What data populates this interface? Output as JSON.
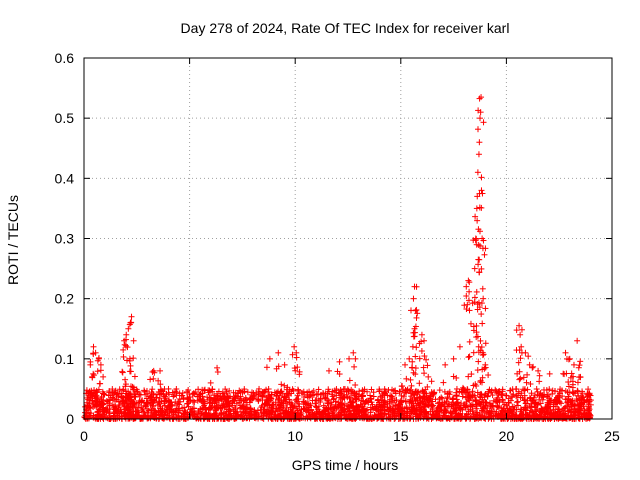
{
  "chart_data": {
    "type": "scatter",
    "title": "Day 278 of 2024, Rate Of TEC Index for receiver karl",
    "xlabel": "GPS time / hours",
    "ylabel": "ROTI / TECUs",
    "xlim": [
      0,
      25
    ],
    "ylim": [
      0,
      0.6
    ],
    "xticks": [
      0,
      5,
      10,
      15,
      20,
      25
    ],
    "yticks": [
      0,
      0.1,
      0.2,
      0.3,
      0.4,
      0.5,
      0.6
    ],
    "xtick_labels": [
      "0",
      "5",
      "10",
      "15",
      "20",
      "25"
    ],
    "ytick_labels": [
      "0",
      "0.1",
      "0.2",
      "0.3",
      "0.4",
      "0.5",
      "0.6"
    ],
    "grid": true,
    "marker": "+",
    "color": "#ff0000",
    "x_data_range": [
      0,
      24
    ],
    "baseline_band": [
      0,
      0.05
    ],
    "series": [
      {
        "name": "ROTI",
        "points": [
          [
            0.3,
            0.09
          ],
          [
            0.45,
            0.12
          ],
          [
            0.55,
            0.11
          ],
          [
            0.7,
            0.1
          ],
          [
            0.8,
            0.09
          ],
          [
            1.9,
            0.13
          ],
          [
            2.0,
            0.14
          ],
          [
            2.1,
            0.15
          ],
          [
            2.2,
            0.16
          ],
          [
            2.25,
            0.17
          ],
          [
            2.35,
            0.13
          ],
          [
            3.3,
            0.08
          ],
          [
            3.6,
            0.08
          ],
          [
            4.0,
            0.05
          ],
          [
            6.3,
            0.085
          ],
          [
            6.0,
            0.06
          ],
          [
            8.8,
            0.1
          ],
          [
            9.2,
            0.11
          ],
          [
            9.5,
            0.09
          ],
          [
            9.95,
            0.12
          ],
          [
            10.05,
            0.11
          ],
          [
            11.6,
            0.08
          ],
          [
            12.1,
            0.095
          ],
          [
            12.55,
            0.1
          ],
          [
            12.75,
            0.11
          ],
          [
            12.85,
            0.1
          ],
          [
            15.2,
            0.09
          ],
          [
            15.4,
            0.1
          ],
          [
            15.6,
            0.2
          ],
          [
            15.65,
            0.22
          ],
          [
            15.7,
            0.18
          ],
          [
            15.65,
            0.15
          ],
          [
            16.0,
            0.14
          ],
          [
            16.1,
            0.13
          ],
          [
            16.3,
            0.07
          ],
          [
            17.1,
            0.09
          ],
          [
            17.5,
            0.1
          ],
          [
            17.8,
            0.12
          ],
          [
            18.1,
            0.22
          ],
          [
            18.15,
            0.19
          ],
          [
            18.2,
            0.23
          ],
          [
            18.5,
            0.25
          ],
          [
            18.55,
            0.3
          ],
          [
            18.6,
            0.35
          ],
          [
            18.62,
            0.37
          ],
          [
            18.65,
            0.41
          ],
          [
            18.7,
            0.44
          ],
          [
            18.72,
            0.46
          ],
          [
            18.75,
            0.5
          ],
          [
            18.78,
            0.51
          ],
          [
            18.8,
            0.535
          ],
          [
            18.82,
            0.38
          ],
          [
            18.85,
            0.3
          ],
          [
            18.9,
            0.2
          ],
          [
            19.0,
            0.09
          ],
          [
            20.6,
            0.155
          ],
          [
            20.65,
            0.14
          ],
          [
            20.7,
            0.12
          ],
          [
            20.9,
            0.11
          ],
          [
            21.1,
            0.09
          ],
          [
            21.5,
            0.08
          ],
          [
            22.05,
            0.075
          ],
          [
            22.8,
            0.11
          ],
          [
            23.0,
            0.1
          ],
          [
            23.2,
            0.09
          ],
          [
            23.35,
            0.13
          ],
          [
            23.5,
            0.07
          ],
          [
            23.9,
            0.04
          ]
        ]
      }
    ]
  }
}
